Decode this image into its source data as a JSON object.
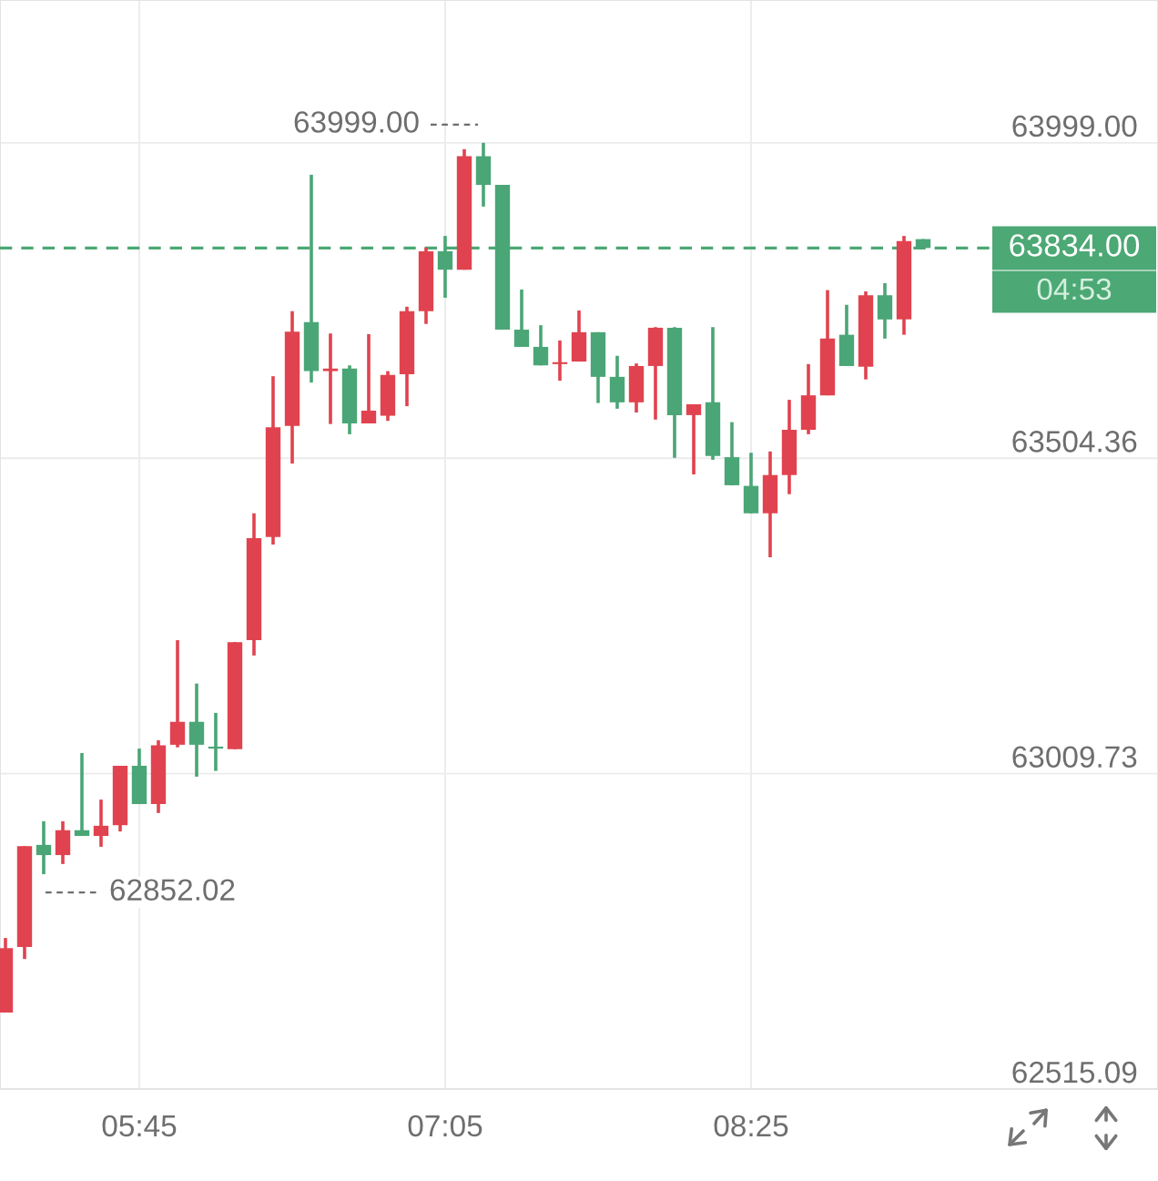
{
  "chart_data": {
    "type": "candlestick",
    "x": [
      5.1667,
      5.25,
      5.3333,
      5.4167,
      5.5,
      5.5833,
      5.6667,
      5.75,
      5.8333,
      5.9167,
      6.0,
      6.0833,
      6.1667,
      6.25,
      6.3333,
      6.4167,
      6.5,
      6.5833,
      6.6667,
      6.75,
      6.8333,
      6.9167,
      7.0,
      7.0833,
      7.1667,
      7.25,
      7.3333,
      7.4167,
      7.5,
      7.5833,
      7.6667,
      7.75,
      7.8333,
      7.9167,
      8.0,
      8.0833,
      8.1667,
      8.25,
      8.3333,
      8.4167,
      8.5,
      8.5833,
      8.6667,
      8.75,
      8.8333,
      8.9167,
      9.0,
      9.0833,
      9.1667
    ],
    "ohlc": [
      [
        62635,
        62752,
        62635,
        62736
      ],
      [
        62738,
        62896,
        62719,
        62896
      ],
      [
        62898,
        62935,
        62852.02,
        62882
      ],
      [
        62882,
        62935,
        62868,
        62921
      ],
      [
        62921,
        63042,
        62912,
        62912
      ],
      [
        62912,
        62969,
        62895,
        62928
      ],
      [
        62929,
        63022,
        62919,
        63022
      ],
      [
        63022,
        63049,
        62962,
        62962
      ],
      [
        62962,
        63062,
        62948,
        63054
      ],
      [
        63055,
        63219,
        63051,
        63091
      ],
      [
        63091,
        63151,
        63005,
        63055
      ],
      [
        63052,
        63105,
        63014,
        63049
      ],
      [
        63048,
        63216,
        63048,
        63216
      ],
      [
        63219,
        63418,
        63195,
        63379
      ],
      [
        63381,
        63633,
        63369,
        63553
      ],
      [
        63555,
        63735,
        63496,
        63703
      ],
      [
        63718,
        63949,
        63623,
        63641
      ],
      [
        63641,
        63700,
        63558,
        63645
      ],
      [
        63645,
        63650,
        63542,
        63559
      ],
      [
        63559,
        63699,
        63559,
        63579
      ],
      [
        63571,
        63641,
        63563,
        63635
      ],
      [
        63636,
        63742,
        63586,
        63735
      ],
      [
        63735,
        63835,
        63715,
        63829
      ],
      [
        63829,
        63853,
        63756,
        63800
      ],
      [
        63800,
        63989,
        63800,
        63978
      ],
      [
        63978,
        63999,
        63899,
        63933
      ],
      [
        63933,
        63933,
        63706,
        63706
      ],
      [
        63706,
        63769,
        63679,
        63679
      ],
      [
        63679,
        63713,
        63650,
        63650
      ],
      [
        63652,
        63689,
        63626,
        63655
      ],
      [
        63656,
        63736,
        63656,
        63702
      ],
      [
        63702,
        63702,
        63591,
        63632
      ],
      [
        63632,
        63665,
        63582,
        63592
      ],
      [
        63592,
        63653,
        63576,
        63649
      ],
      [
        63649,
        63710,
        63565,
        63709
      ],
      [
        63709,
        63710,
        63505,
        63572
      ],
      [
        63572,
        63589,
        63479,
        63589
      ],
      [
        63592,
        63710,
        63502,
        63508
      ],
      [
        63506,
        63561,
        63462,
        63462
      ],
      [
        63461,
        63513,
        63418,
        63418
      ],
      [
        63418,
        63515,
        63349,
        63478
      ],
      [
        63478,
        63596,
        63448,
        63549
      ],
      [
        63549,
        63652,
        63542,
        63603
      ],
      [
        63603,
        63768,
        63603,
        63692
      ],
      [
        63698,
        63745,
        63649,
        63649
      ],
      [
        63648,
        63766,
        63628,
        63760
      ],
      [
        63760,
        63779,
        63692,
        63722
      ],
      [
        63722,
        63853,
        63698,
        63845
      ],
      [
        63848,
        63848,
        63834,
        63834
      ]
    ],
    "colors": [
      "#e0434f",
      "#e0434f",
      "#4aa676",
      "#e0434f",
      "#4aa676",
      "#e0434f",
      "#e0434f",
      "#4aa676",
      "#e0434f",
      "#e0434f",
      "#4aa676",
      "#4aa676",
      "#e0434f",
      "#e0434f",
      "#e0434f",
      "#e0434f",
      "#4aa676",
      "#e0434f",
      "#4aa676",
      "#e0434f",
      "#e0434f",
      "#e0434f",
      "#e0434f",
      "#4aa676",
      "#e0434f",
      "#4aa676",
      "#4aa676",
      "#4aa676",
      "#4aa676",
      "#e0434f",
      "#e0434f",
      "#4aa676",
      "#4aa676",
      "#e0434f",
      "#e0434f",
      "#4aa676",
      "#e0434f",
      "#4aa676",
      "#4aa676",
      "#4aa676",
      "#e0434f",
      "#e0434f",
      "#e0434f",
      "#e0434f",
      "#4aa676",
      "#e0434f",
      "#4aa676",
      "#e0434f",
      "#4aa676"
    ],
    "xlim": [
      5.1429,
      10.1905
    ],
    "xticks": [
      {
        "value": 5.75,
        "label": "05:45"
      },
      {
        "value": 7.0833,
        "label": "07:05"
      },
      {
        "value": 8.4167,
        "label": "08:25"
      }
    ],
    "ylim": [
      62515.09,
      64223
    ],
    "yticks": [
      {
        "value": 62515.09,
        "label": "62515.09"
      },
      {
        "value": 63009.73,
        "label": "63009.73"
      },
      {
        "value": 63504.36,
        "label": "63504.36"
      },
      {
        "value": 63999,
        "label": "63999.00"
      }
    ],
    "grid": true,
    "ref_lines": [
      {
        "axis": "y",
        "value": 63834,
        "label": "63834.00",
        "color": "#4ca874",
        "line_style": "dashed"
      }
    ],
    "annotations": [
      {
        "text": "63999.00",
        "x": 7.25,
        "y": 63999
      },
      {
        "text": "62852.02",
        "x": 5.3333,
        "y": 62852.02
      },
      "04:53"
    ]
  }
}
